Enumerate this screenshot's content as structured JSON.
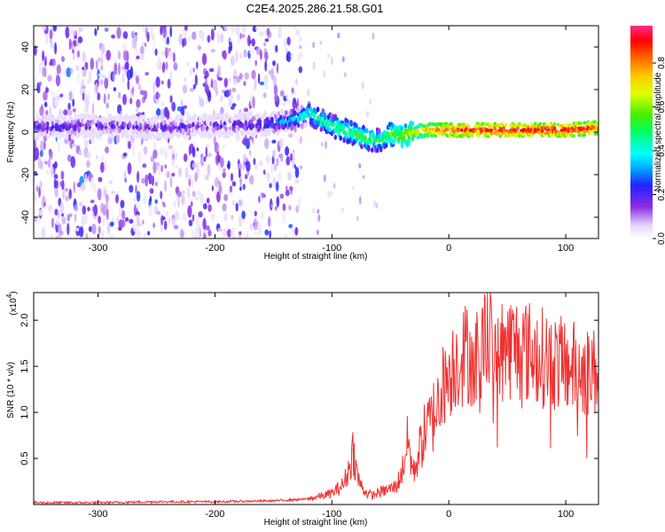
{
  "title": "C2E4.2025.286.21.58.G01",
  "chart_data": [
    {
      "type": "heatmap",
      "xlabel": "Height of straight line (km)",
      "ylabel": "Frequency (Hz)",
      "xlim": [
        -355,
        128
      ],
      "ylim": [
        -50,
        50
      ],
      "xticks": [
        -300,
        -200,
        -100,
        0,
        100
      ],
      "yticks": [
        -40,
        -20,
        0,
        20,
        40
      ],
      "colorbar": {
        "label": "Normalized spectral amplitude",
        "range": [
          0,
          0.97
        ],
        "ticks": [
          0.0,
          0.2,
          0.4,
          0.6,
          0.8
        ],
        "tick_labels": [
          "0.0",
          "0.2",
          "0.4",
          "0.6",
          "0.8"
        ]
      },
      "ridge": {
        "x": [
          -355,
          -300,
          -250,
          -200,
          -150,
          -130,
          -120,
          -110,
          -100,
          -90,
          -80,
          -70,
          -60,
          -50,
          -40,
          -30,
          -20,
          0,
          50,
          100,
          128
        ],
        "frequency": [
          2,
          3,
          2,
          3,
          4,
          6,
          9,
          6,
          3,
          1,
          -1,
          -3,
          -4,
          -1,
          -2,
          0,
          1,
          1,
          1,
          1,
          2
        ],
        "amplitude": [
          0.25,
          0.2,
          0.2,
          0.2,
          0.3,
          0.4,
          0.45,
          0.5,
          0.5,
          0.55,
          0.55,
          0.55,
          0.5,
          0.6,
          0.65,
          0.7,
          0.8,
          0.9,
          0.95,
          0.95,
          0.9
        ]
      }
    },
    {
      "type": "line",
      "xlabel": "Height of straight line (km)",
      "ylabel": "SNR (10 * v/v)",
      "y_multiplier": "(x10",
      "y_multiplier_exp": "4",
      "y_multiplier_close": ")",
      "xlim": [
        -355,
        128
      ],
      "ylim": [
        0,
        2.3
      ],
      "xticks": [
        -300,
        -200,
        -100,
        0,
        100
      ],
      "yticks": [
        0.5,
        1.0,
        1.5,
        2.0
      ],
      "ytick_labels": [
        "0.5",
        "1.0",
        "1.5",
        "2.0"
      ],
      "color": "#ee3333",
      "series": [
        {
          "x": [
            -355,
            -300,
            -250,
            -200,
            -150,
            -120,
            -110,
            -100,
            -95,
            -90,
            -85,
            -82,
            -80,
            -78,
            -75,
            -70,
            -65,
            -60,
            -55,
            -50,
            -45,
            -40,
            -38,
            -35,
            -32,
            -30,
            -25,
            -20,
            -15,
            -10,
            -5,
            0,
            5,
            10,
            15,
            20,
            25,
            30,
            35,
            40,
            45,
            50,
            60,
            70,
            80,
            90,
            100,
            110,
            120,
            128
          ],
          "y": [
            0.02,
            0.02,
            0.03,
            0.03,
            0.04,
            0.06,
            0.09,
            0.12,
            0.17,
            0.22,
            0.4,
            0.6,
            0.45,
            0.3,
            0.2,
            0.12,
            0.1,
            0.13,
            0.15,
            0.17,
            0.2,
            0.35,
            0.5,
            0.7,
            0.45,
            0.35,
            0.6,
            0.8,
            0.9,
            1.1,
            1.3,
            1.4,
            1.55,
            1.6,
            1.65,
            1.6,
            1.7,
            1.8,
            1.85,
            1.8,
            1.7,
            1.72,
            1.7,
            1.65,
            1.6,
            1.55,
            1.5,
            1.48,
            1.45,
            1.42
          ]
        }
      ]
    }
  ]
}
